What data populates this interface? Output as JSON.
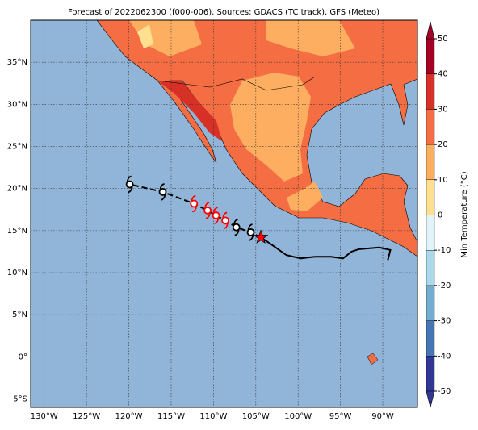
{
  "chart_data": {
    "type": "map",
    "title": "Forecast of 2022062300 (f000-006), Sources: GDACS (TC track), GFS (Meteo)",
    "xlim": [
      -131.6,
      -85.9
    ],
    "ylim": [
      -6,
      40
    ],
    "xticks": [
      {
        "value": -130,
        "label": "130°W"
      },
      {
        "value": -125,
        "label": "125°W"
      },
      {
        "value": -120,
        "label": "120°W"
      },
      {
        "value": -115,
        "label": "115°W"
      },
      {
        "value": -110,
        "label": "110°W"
      },
      {
        "value": -105,
        "label": "105°W"
      },
      {
        "value": -100,
        "label": "100°W"
      },
      {
        "value": -95,
        "label": "95°W"
      },
      {
        "value": -90,
        "label": "90°W"
      }
    ],
    "yticks": [
      {
        "value": -5,
        "label": "5°S"
      },
      {
        "value": 0,
        "label": "0°"
      },
      {
        "value": 5,
        "label": "5°N"
      },
      {
        "value": 10,
        "label": "10°N"
      },
      {
        "value": 15,
        "label": "15°N"
      },
      {
        "value": 20,
        "label": "20°N"
      },
      {
        "value": 25,
        "label": "25°N"
      },
      {
        "value": 30,
        "label": "30°N"
      },
      {
        "value": 35,
        "label": "35°N"
      }
    ],
    "grid": true,
    "ocean_color": "#91b5d9",
    "forecast_track": {
      "x": [
        -104.4,
        -105.6,
        -107.3,
        -108.6,
        -109.7,
        -110.7,
        -112.3,
        -116.0,
        -119.9
      ],
      "values": [
        14.2,
        14.8,
        15.4,
        16.2,
        16.8,
        17.4,
        18.2,
        19.6,
        20.5
      ],
      "marker_colors": [
        "#ff0000",
        "#000000",
        "#000000",
        "#ff0000",
        "#ff0000",
        "#ff0000",
        "#ff0000",
        "#000000",
        "#000000"
      ],
      "color": "#000000"
    },
    "past_track": {
      "x": [
        -104.4,
        -102.8,
        -101.4,
        -99.7,
        -98.0,
        -96.1,
        -94.7,
        -93.7,
        -92.8,
        -90.4,
        -89.1,
        -89.4
      ],
      "values": [
        14.2,
        13.1,
        12.1,
        11.7,
        11.9,
        11.9,
        11.7,
        12.5,
        12.8,
        13.0,
        12.7,
        11.5
      ],
      "color": "#000000"
    },
    "colorbar": {
      "label": "Min Temperature (°C)",
      "clim": [
        -50,
        50
      ],
      "ticks": [
        -50,
        -40,
        -30,
        -20,
        -10,
        0,
        10,
        20,
        30,
        40,
        50
      ],
      "colors": [
        "#313695",
        "#4575b4",
        "#74add1",
        "#abd9e9",
        "#e0f3f8",
        "#fee090",
        "#fdae61",
        "#f46d43",
        "#d73027",
        "#a50026"
      ]
    }
  }
}
